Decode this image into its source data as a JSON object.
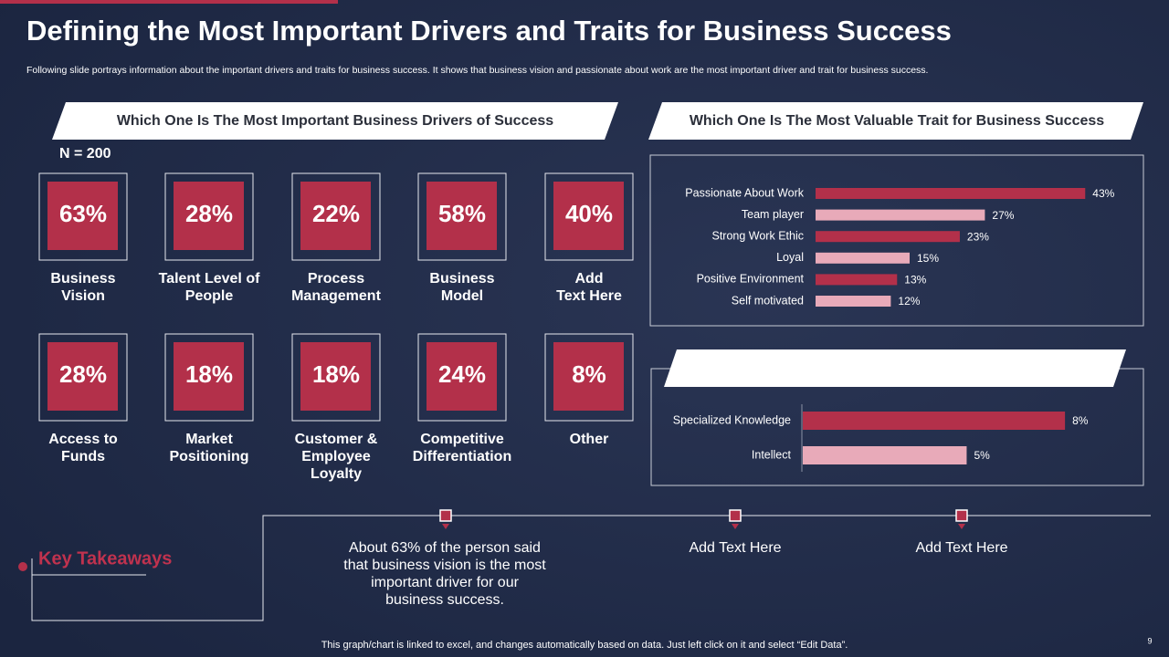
{
  "header": {
    "title": "Defining the Most Important Drivers and Traits for Business Success",
    "subtitle": "Following slide portrays information about the important drivers and traits for business success. It shows that business vision and passionate about work are the most important driver and trait for business success."
  },
  "drivers": {
    "heading": "Which One Is The Most Important Business Drivers of Success",
    "sample": "N = 200",
    "items": [
      {
        "value": "63%",
        "label": [
          "Business",
          "Vision"
        ]
      },
      {
        "value": "28%",
        "label": [
          "Talent Level of",
          "People"
        ]
      },
      {
        "value": "22%",
        "label": [
          "Process",
          "Management"
        ]
      },
      {
        "value": "58%",
        "label": [
          "Business",
          "Model"
        ]
      },
      {
        "value": "40%",
        "label": [
          "Add",
          "Text Here"
        ]
      },
      {
        "value": "28%",
        "label": [
          "Access to",
          "Funds"
        ]
      },
      {
        "value": "18%",
        "label": [
          "Market",
          "Positioning"
        ]
      },
      {
        "value": "18%",
        "label": [
          "Customer &",
          "Employee",
          "Loyalty"
        ]
      },
      {
        "value": "24%",
        "label": [
          "Competitive",
          "Differentiation"
        ]
      },
      {
        "value": "8%",
        "label": [
          "Other"
        ]
      }
    ]
  },
  "chart_data": [
    {
      "type": "bar",
      "orientation": "horizontal",
      "title": "Which One Is The Most Valuable Trait for Business Success",
      "categories": [
        "Passionate About Work",
        "Team player",
        "Strong Work Ethic",
        "Loyal",
        "Positive Environment",
        "Self motivated"
      ],
      "values": [
        43,
        27,
        23,
        15,
        13,
        12
      ],
      "value_labels": [
        "43%",
        "27%",
        "23%",
        "15%",
        "13%",
        "12%"
      ],
      "colors": [
        "#b3304a",
        "#e8aab9",
        "#b3304a",
        "#e8aab9",
        "#b3304a",
        "#e8aab9"
      ],
      "xlim": [
        0,
        45
      ]
    },
    {
      "type": "bar",
      "orientation": "horizontal",
      "categories": [
        "Specialized Knowledge",
        "Intellect"
      ],
      "values": [
        8,
        5
      ],
      "value_labels": [
        "8%",
        "5%"
      ],
      "colors": [
        "#b3304a",
        "#e8aab9"
      ],
      "xlim": [
        0,
        9
      ]
    }
  ],
  "takeaways": {
    "heading": "Key Takeaways",
    "points": [
      [
        "About 63% of the person said",
        "that business vision is the most",
        "important driver for our",
        "business success."
      ],
      [
        "Add Text Here"
      ],
      [
        "Add Text Here"
      ]
    ]
  },
  "footer": {
    "note": "This graph/chart is linked to excel,  and changes automatically based on data. Just left click on it and select “Edit Data”.",
    "page": "9"
  }
}
